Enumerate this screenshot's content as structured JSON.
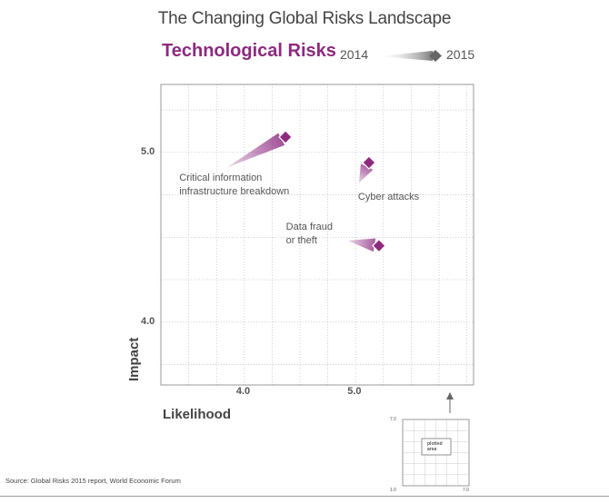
{
  "chart_data": {
    "type": "scatter",
    "title": "The Changing Global Risks Landscape",
    "subtitle": "Technological Risks",
    "xlabel": "Likelihood",
    "ylabel": "Impact",
    "legend": {
      "start_label": "2014",
      "end_label": "2015",
      "placement": "top-right"
    },
    "x_ticks": [
      {
        "value": 4.0,
        "label": "4.0"
      },
      {
        "value": 5.0,
        "label": "5.0"
      }
    ],
    "y_ticks": [
      {
        "value": 4.0,
        "label": "4.0"
      },
      {
        "value": 5.0,
        "label": "5.0"
      }
    ],
    "xlim": [
      3.25,
      6.06
    ],
    "ylim": [
      3.63,
      5.4
    ],
    "grid": true,
    "series": [
      {
        "name": "Critical information infrastructure breakdown",
        "label_lines": [
          "Critical information",
          "infrastructure breakdown"
        ],
        "x_2014": 3.84,
        "y_2014": 4.91,
        "x_2015": 4.37,
        "y_2015": 5.09
      },
      {
        "name": "Cyber attacks",
        "label_lines": [
          "Cyber attacks"
        ],
        "x_2014": 5.03,
        "y_2014": 4.82,
        "x_2015": 5.12,
        "y_2015": 4.94
      },
      {
        "name": "Data fraud or theft",
        "label_lines": [
          "Data fraud",
          "or theft"
        ],
        "x_2014": 4.93,
        "y_2014": 4.48,
        "x_2015": 5.21,
        "y_2015": 4.45
      }
    ],
    "colors": {
      "accent": "#8d2a80",
      "grid": "#b3b3b3",
      "frame": "#999999"
    }
  },
  "inset": {
    "top_value": "7.0",
    "bottom_left_value": "1.0",
    "bottom_right_value": "7.0",
    "box_label_lines": [
      "plotted",
      "area"
    ]
  },
  "source": "Source: Global Risks 2015 report, World Economic Forum"
}
